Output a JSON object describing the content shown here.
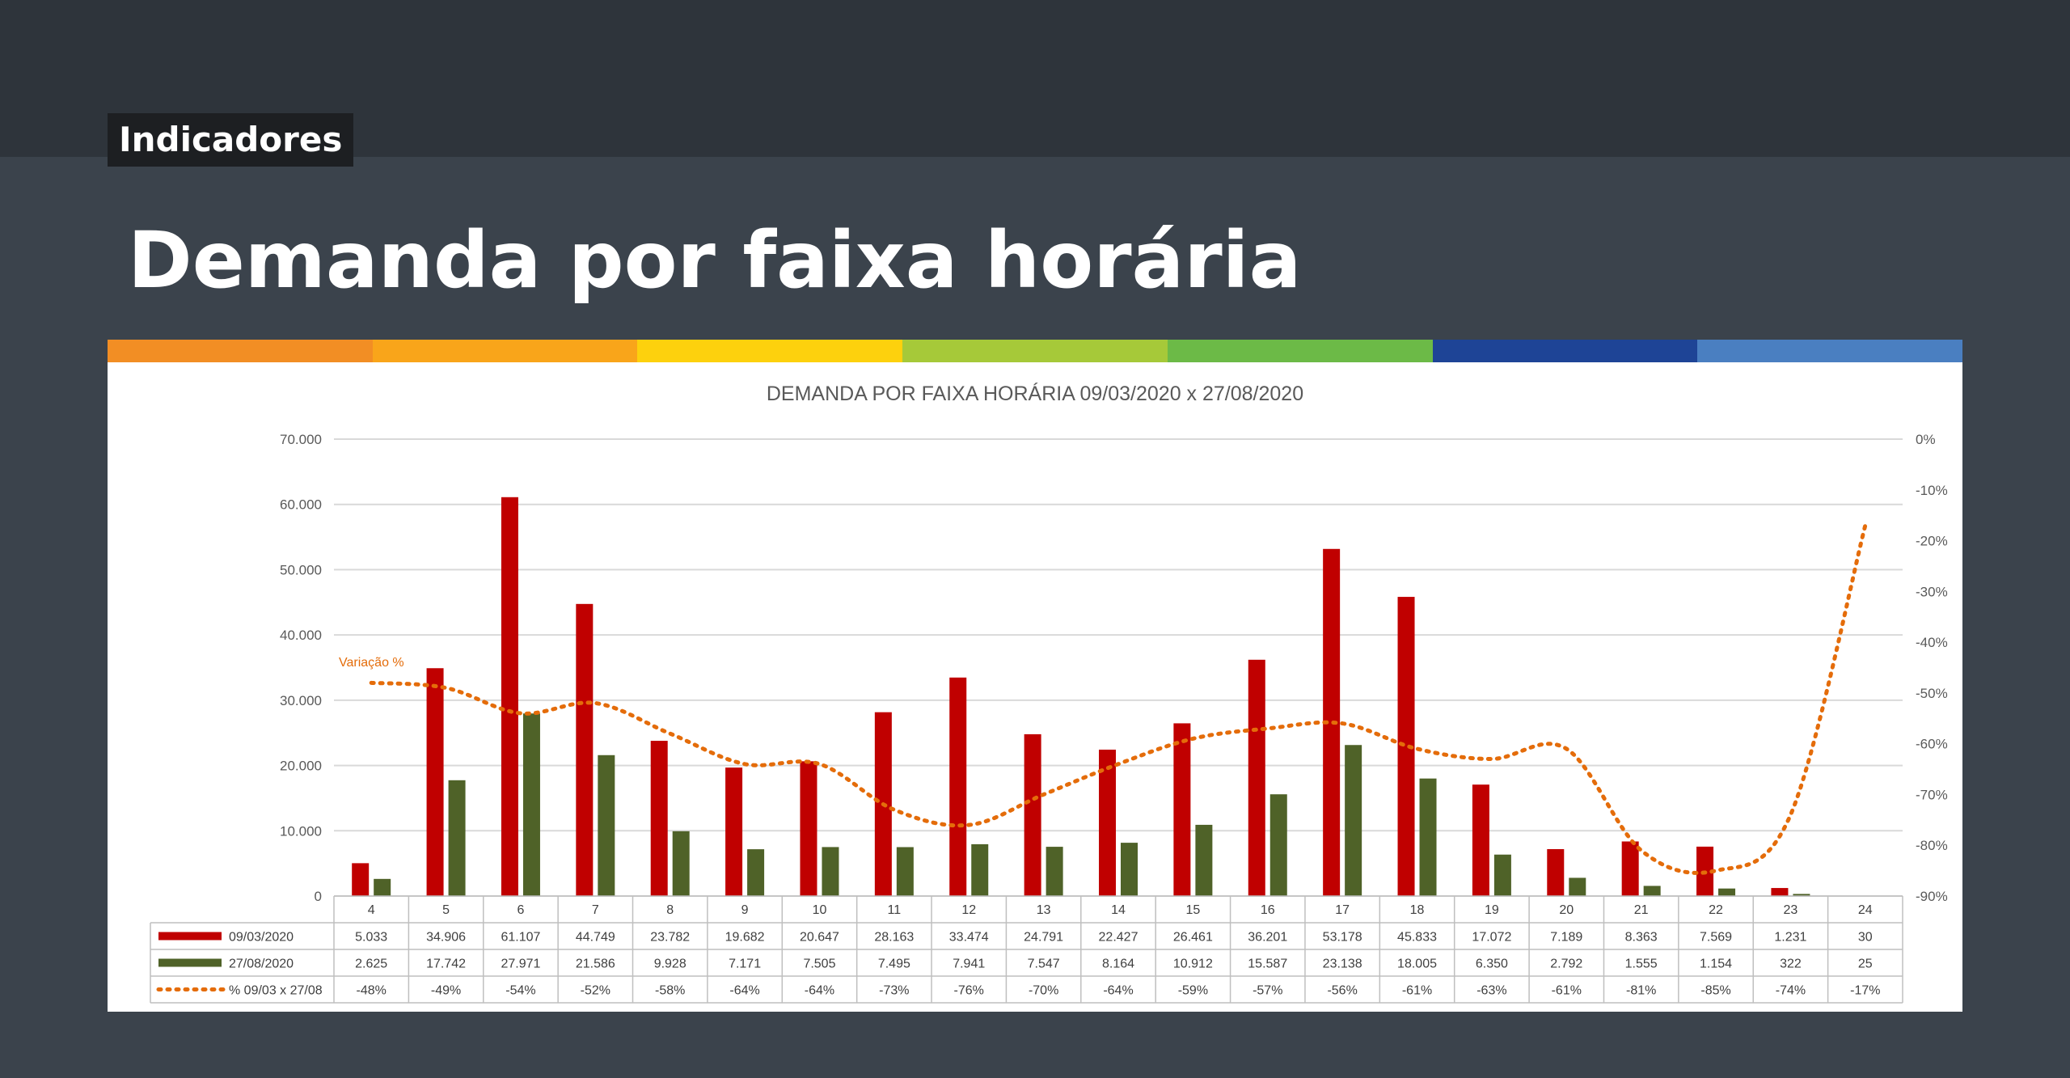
{
  "header": {
    "tag": "Indicadores",
    "title": "Demanda por faixa horária"
  },
  "stripe_colors": [
    "#f28e24",
    "#f9a51a",
    "#fdd10d",
    "#a6c939",
    "#6cba47",
    "#1e4496",
    "#4a7fc1"
  ],
  "chart_data": {
    "type": "bar",
    "title": "DEMANDA POR FAIXA HORÁRIA 09/03/2020 x 27/08/2020",
    "categories": [
      "4",
      "5",
      "6",
      "7",
      "8",
      "9",
      "10",
      "11",
      "12",
      "13",
      "14",
      "15",
      "16",
      "17",
      "18",
      "19",
      "20",
      "21",
      "22",
      "23",
      "24"
    ],
    "ylim": [
      0,
      70000
    ],
    "yticks": [
      "0",
      "10.000",
      "20.000",
      "30.000",
      "40.000",
      "50.000",
      "60.000",
      "70.000"
    ],
    "y2lim": [
      -90,
      0
    ],
    "y2ticks": [
      "-90%",
      "-80%",
      "-70%",
      "-60%",
      "-50%",
      "-40%",
      "-30%",
      "-20%",
      "-10%",
      "0%"
    ],
    "grid": true,
    "series": [
      {
        "name": "09/03/2020",
        "kind": "bar",
        "color": "#c00000",
        "values": [
          5033,
          34906,
          61107,
          44749,
          23782,
          19682,
          20647,
          28163,
          33474,
          24791,
          22427,
          26461,
          36201,
          53178,
          45833,
          17072,
          7189,
          8363,
          7569,
          1231,
          30
        ],
        "labels": [
          "5.033",
          "34.906",
          "61.107",
          "44.749",
          "23.782",
          "19.682",
          "20.647",
          "28.163",
          "33.474",
          "24.791",
          "22.427",
          "26.461",
          "36.201",
          "53.178",
          "45.833",
          "17.072",
          "7.189",
          "8.363",
          "7.569",
          "1.231",
          "30"
        ]
      },
      {
        "name": "27/08/2020",
        "kind": "bar",
        "color": "#4f6228",
        "values": [
          2625,
          17742,
          27971,
          21586,
          9928,
          7171,
          7505,
          7495,
          7941,
          7547,
          8164,
          10912,
          15587,
          23138,
          18005,
          6350,
          2792,
          1555,
          1154,
          322,
          25
        ],
        "labels": [
          "2.625",
          "17.742",
          "27.971",
          "21.586",
          "9.928",
          "7.171",
          "7.505",
          "7.495",
          "7.941",
          "7.547",
          "8.164",
          "10.912",
          "15.587",
          "23.138",
          "18.005",
          "6.350",
          "2.792",
          "1.555",
          "1.154",
          "322",
          "25"
        ]
      },
      {
        "name": "% 09/03 x 27/08",
        "kind": "line-dotted",
        "axis": "right",
        "color": "#e46c0a",
        "values": [
          -48,
          -49,
          -54,
          -52,
          -58,
          -64,
          -64,
          -73,
          -76,
          -70,
          -64,
          -59,
          -57,
          -56,
          -61,
          -63,
          -61,
          -81,
          -85,
          -74,
          -17
        ],
        "labels": [
          "-48%",
          "-49%",
          "-54%",
          "-52%",
          "-58%",
          "-64%",
          "-64%",
          "-73%",
          "-76%",
          "-70%",
          "-64%",
          "-59%",
          "-57%",
          "-56%",
          "-61%",
          "-63%",
          "-61%",
          "-81%",
          "-85%",
          "-74%",
          "-17%"
        ]
      }
    ],
    "annotations": [
      "Variação %"
    ]
  }
}
